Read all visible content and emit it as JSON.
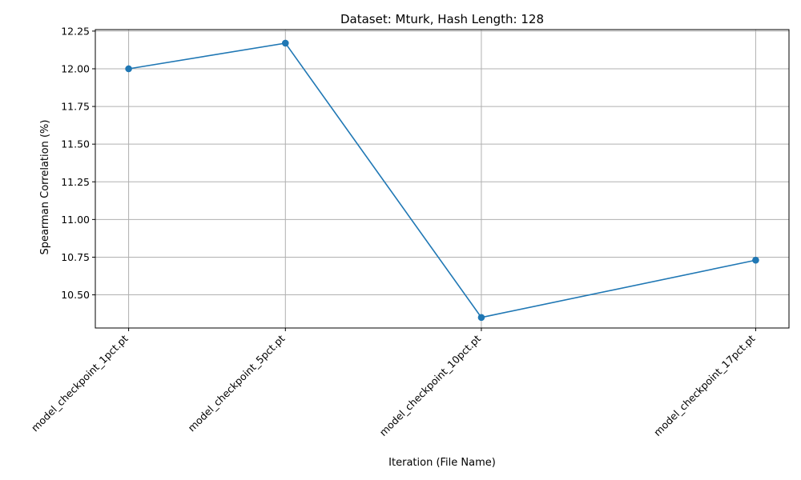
{
  "chart_data": {
    "type": "line",
    "title": "Dataset: Mturk, Hash Length: 128",
    "xlabel": "Iteration (File Name)",
    "ylabel": "Spearman Correlation (%)",
    "x_labels": [
      "model_checkpoint_1pct.pt",
      "model_checkpoint_5pct.pt",
      "model_checkpoint_10pct.pt",
      "model_checkpoint_17pct.pt"
    ],
    "x": [
      1,
      5,
      10,
      17
    ],
    "series": [
      {
        "values": [
          12.0,
          12.17,
          10.35,
          10.73
        ]
      }
    ],
    "xlim": [
      0.15,
      17.85
    ],
    "ylim": [
      10.28,
      12.26
    ],
    "yticks": [
      10.5,
      10.75,
      11.0,
      11.25,
      11.5,
      11.75,
      12.0,
      12.25
    ],
    "ytick_labels": [
      "10.50",
      "10.75",
      "11.00",
      "11.25",
      "11.50",
      "11.75",
      "12.00",
      "12.25"
    ],
    "grid": true,
    "line_color": "#1f77b4"
  }
}
